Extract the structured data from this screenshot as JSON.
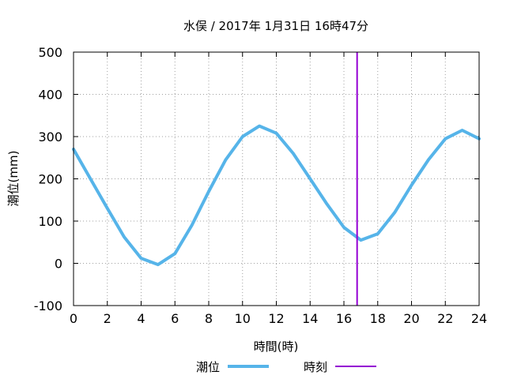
{
  "chart_data": {
    "type": "line",
    "title": "水俣 / 2017年 1月31日 16時47分",
    "xlabel": "時間(時)",
    "ylabel": "潮位(mm)",
    "xlim": [
      0,
      24
    ],
    "ylim": [
      -100,
      500
    ],
    "xticks": [
      0,
      2,
      4,
      6,
      8,
      10,
      12,
      14,
      16,
      18,
      20,
      22,
      24
    ],
    "yticks": [
      -100,
      0,
      100,
      200,
      300,
      400,
      500
    ],
    "grid": true,
    "legend_position": "bottom",
    "series": [
      {
        "name": "潮位",
        "color": "#56b4e9",
        "x": [
          0,
          1,
          2,
          3,
          4,
          5,
          6,
          7,
          8,
          9,
          10,
          11,
          12,
          13,
          14,
          15,
          16,
          17,
          18,
          19,
          20,
          21,
          22,
          23,
          24
        ],
        "y": [
          270,
          200,
          130,
          62,
          12,
          -3,
          23,
          90,
          170,
          245,
          300,
          325,
          308,
          260,
          200,
          140,
          85,
          55,
          70,
          120,
          185,
          245,
          295,
          315,
          295
        ]
      }
    ],
    "markers": [
      {
        "name": "時刻",
        "type": "vline",
        "x": 16.78,
        "color": "#9400d3"
      }
    ]
  }
}
